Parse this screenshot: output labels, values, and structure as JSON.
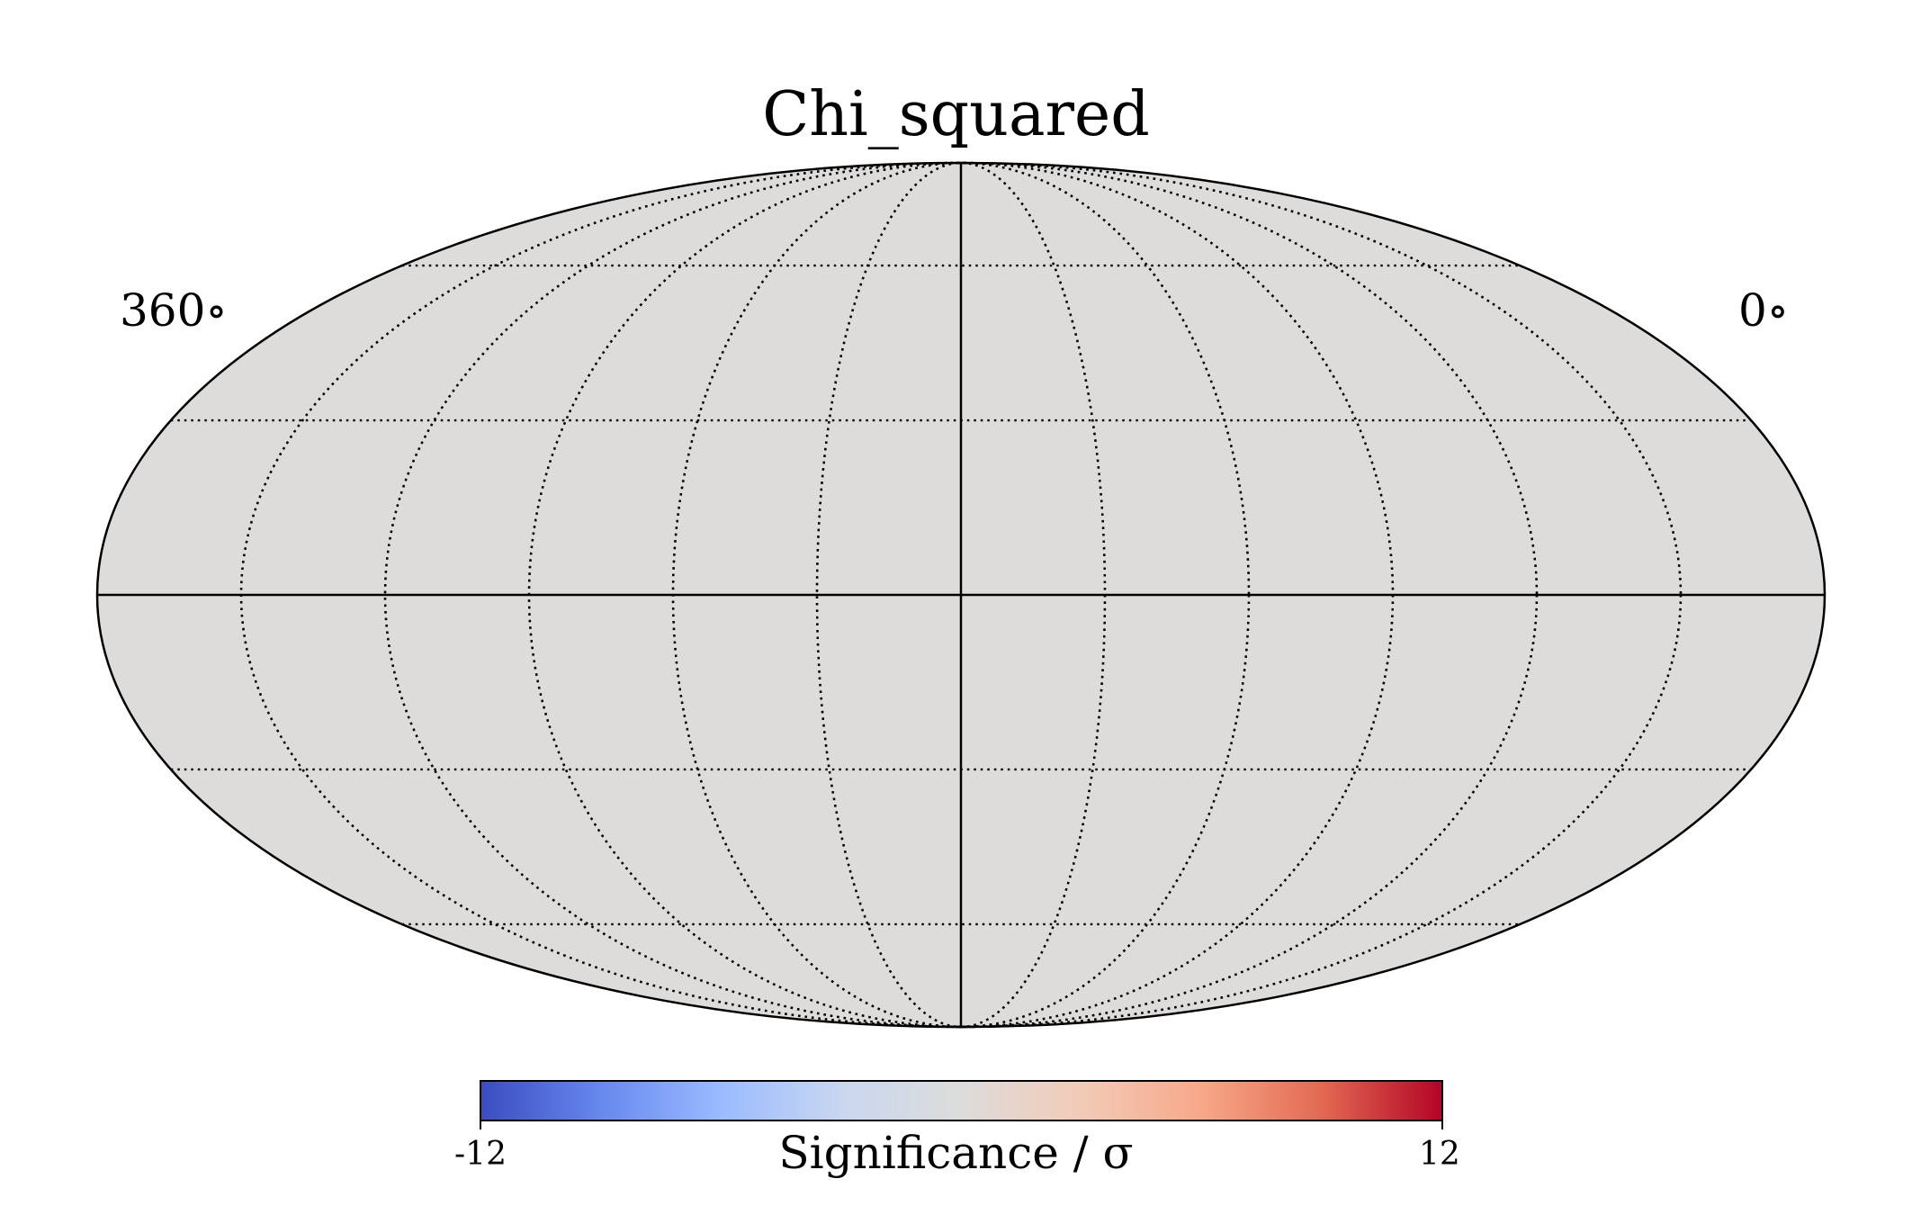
{
  "chart_data": {
    "type": "heatmap",
    "projection": "mollweide",
    "title": "Chi_squared",
    "longitude_labels": {
      "left": "360$^\\circ$",
      "right": "0$^\\circ$"
    },
    "map_fill_color": "#dddcdb",
    "graticule": {
      "enabled": true,
      "line_style": "dotted",
      "meridians_step_deg": 30,
      "parallels_step_deg": 30
    },
    "colorbar": {
      "label": "Significance / σ",
      "min_label": "-12",
      "max_label": "12",
      "range": [
        -12,
        12
      ],
      "colormap": "coolwarm",
      "orientation": "horizontal",
      "placement": "bottom",
      "colors": [
        "#3b4cc0",
        "#6788ee",
        "#9abbff",
        "#c9d7f0",
        "#dddcdb",
        "#f2cbb7",
        "#f7a889",
        "#e26952",
        "#b40426"
      ]
    }
  }
}
